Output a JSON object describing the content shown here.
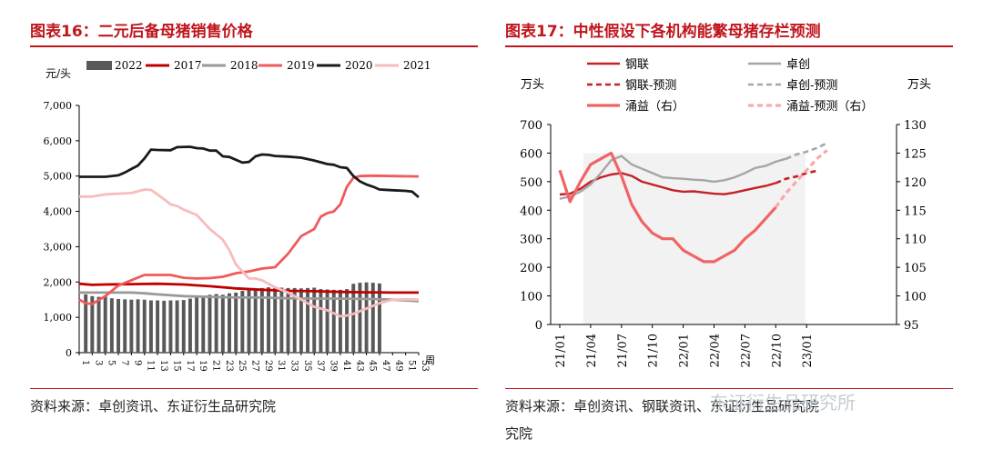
{
  "left": {
    "title": "图表16：二元后备母猪销售价格",
    "source": "资料来源：卓创资讯、东证衍生品研究院"
  },
  "right": {
    "title": "图表17：中性假设下各机构能繁母猪存栏预测",
    "source_line1": "资料来源：卓创资讯、钢联资讯、东证衍生品研究院",
    "source_line2": "究院"
  },
  "watermark": "东证衍生品研究所",
  "colors": {
    "y2022": "#595959",
    "y2017": "#c00000",
    "y2018": "#999999",
    "y2019": "#f05a5a",
    "y2020": "#1a1a1a",
    "y2021": "#f7bcbc",
    "ganglian": "#c42026",
    "zhuochuang": "#a6a6a6",
    "yongyi": "#f06464",
    "yongyi_forecast": "#f7aaaa",
    "shade": "#f2f2f2"
  },
  "chart_data": [
    {
      "type": "bar+line",
      "title": "二元后备母猪销售价格",
      "ylabel": "元/头",
      "xlabel": "周",
      "ylim": [
        0,
        7000
      ],
      "yticks": [
        "0",
        "1,000",
        "2,000",
        "3,000",
        "4,000",
        "5,000",
        "6,000",
        "7,000"
      ],
      "xticks": [
        "1",
        "3",
        "5",
        "7",
        "9",
        "11",
        "13",
        "15",
        "17",
        "19",
        "21",
        "23",
        "25",
        "27",
        "29",
        "31",
        "33",
        "35",
        "37",
        "39",
        "41",
        "43",
        "45",
        "47",
        "49",
        "51",
        "53"
      ],
      "legend": [
        "2022",
        "2017",
        "2018",
        "2019",
        "2020",
        "2021"
      ],
      "bars_2022": {
        "name": "2022",
        "weeks": [
          2,
          3,
          4,
          5,
          6,
          7,
          8,
          9,
          10,
          11,
          12,
          13,
          14,
          15,
          16,
          17,
          18,
          19,
          20,
          21,
          22,
          23,
          24,
          25,
          26,
          27,
          28,
          29,
          30,
          31,
          32,
          33,
          34,
          35,
          36,
          37,
          38,
          39,
          40,
          41,
          42,
          43,
          44,
          45,
          46,
          47
        ],
        "values": [
          1650,
          1600,
          1580,
          1620,
          1540,
          1520,
          1510,
          1500,
          1510,
          1500,
          1480,
          1480,
          1470,
          1480,
          1480,
          1490,
          1530,
          1580,
          1600,
          1640,
          1660,
          1640,
          1680,
          1700,
          1750,
          1780,
          1800,
          1830,
          1850,
          1870,
          1840,
          1830,
          1830,
          1820,
          1830,
          1840,
          1800,
          1790,
          1780,
          1780,
          1800,
          1950,
          1980,
          1990,
          1980,
          1960
        ]
      },
      "series": [
        {
          "name": "2017",
          "weeks": [
            1,
            53
          ],
          "values": [
            1950,
            1700
          ],
          "points": [
            [
              1,
              1950
            ],
            [
              3,
              1920
            ],
            [
              5,
              1930
            ],
            [
              9,
              1940
            ],
            [
              13,
              1950
            ],
            [
              17,
              1930
            ],
            [
              21,
              1880
            ],
            [
              25,
              1820
            ],
            [
              29,
              1780
            ],
            [
              33,
              1750
            ],
            [
              37,
              1740
            ],
            [
              41,
              1720
            ],
            [
              45,
              1710
            ],
            [
              49,
              1700
            ],
            [
              53,
              1700
            ]
          ]
        },
        {
          "name": "2018",
          "points": [
            [
              1,
              1700
            ],
            [
              5,
              1700
            ],
            [
              9,
              1700
            ],
            [
              11,
              1680
            ],
            [
              13,
              1650
            ],
            [
              17,
              1600
            ],
            [
              21,
              1580
            ],
            [
              25,
              1560
            ],
            [
              29,
              1560
            ],
            [
              33,
              1540
            ],
            [
              37,
              1530
            ],
            [
              41,
              1530
            ],
            [
              45,
              1520
            ],
            [
              49,
              1500
            ],
            [
              53,
              1460
            ]
          ]
        },
        {
          "name": "2019",
          "points": [
            [
              1,
              1500
            ],
            [
              2,
              1400
            ],
            [
              3,
              1380
            ],
            [
              5,
              1600
            ],
            [
              7,
              1900
            ],
            [
              9,
              2050
            ],
            [
              11,
              2200
            ],
            [
              15,
              2200
            ],
            [
              17,
              2120
            ],
            [
              19,
              2100
            ],
            [
              21,
              2110
            ],
            [
              23,
              2150
            ],
            [
              25,
              2250
            ],
            [
              27,
              2300
            ],
            [
              29,
              2380
            ],
            [
              31,
              2420
            ],
            [
              33,
              2800
            ],
            [
              35,
              3300
            ],
            [
              37,
              3500
            ],
            [
              38,
              3850
            ],
            [
              39,
              3950
            ],
            [
              40,
              4000
            ],
            [
              41,
              4200
            ],
            [
              42,
              4700
            ],
            [
              43,
              4950
            ],
            [
              44,
              5000
            ],
            [
              46,
              5010
            ],
            [
              49,
              5000
            ],
            [
              53,
              4990
            ]
          ]
        },
        {
          "name": "2020",
          "points": [
            [
              1,
              4980
            ],
            [
              3,
              4980
            ],
            [
              5,
              4980
            ],
            [
              7,
              5020
            ],
            [
              8,
              5100
            ],
            [
              9,
              5200
            ],
            [
              10,
              5300
            ],
            [
              11,
              5500
            ],
            [
              12,
              5750
            ],
            [
              13,
              5740
            ],
            [
              15,
              5730
            ],
            [
              16,
              5820
            ],
            [
              18,
              5830
            ],
            [
              19,
              5790
            ],
            [
              20,
              5780
            ],
            [
              21,
              5720
            ],
            [
              22,
              5720
            ],
            [
              23,
              5560
            ],
            [
              24,
              5540
            ],
            [
              25,
              5460
            ],
            [
              26,
              5380
            ],
            [
              27,
              5400
            ],
            [
              28,
              5560
            ],
            [
              29,
              5610
            ],
            [
              30,
              5600
            ],
            [
              31,
              5570
            ],
            [
              33,
              5550
            ],
            [
              35,
              5520
            ],
            [
              37,
              5440
            ],
            [
              39,
              5340
            ],
            [
              40,
              5320
            ],
            [
              41,
              5250
            ],
            [
              42,
              5230
            ],
            [
              43,
              5000
            ],
            [
              44,
              4850
            ],
            [
              45,
              4760
            ],
            [
              46,
              4700
            ],
            [
              47,
              4620
            ],
            [
              49,
              4600
            ],
            [
              51,
              4580
            ],
            [
              52,
              4560
            ],
            [
              53,
              4400
            ]
          ]
        },
        {
          "name": "2021",
          "points": [
            [
              1,
              4420
            ],
            [
              3,
              4420
            ],
            [
              5,
              4480
            ],
            [
              7,
              4500
            ],
            [
              9,
              4520
            ],
            [
              11,
              4620
            ],
            [
              12,
              4610
            ],
            [
              13,
              4480
            ],
            [
              15,
              4200
            ],
            [
              16,
              4150
            ],
            [
              17,
              4050
            ],
            [
              19,
              3900
            ],
            [
              20,
              3700
            ],
            [
              21,
              3500
            ],
            [
              23,
              3200
            ],
            [
              24,
              2900
            ],
            [
              25,
              2500
            ],
            [
              26,
              2300
            ],
            [
              27,
              2100
            ],
            [
              28,
              2100
            ],
            [
              29,
              2050
            ],
            [
              31,
              1850
            ],
            [
              33,
              1700
            ],
            [
              35,
              1500
            ],
            [
              37,
              1300
            ],
            [
              39,
              1200
            ],
            [
              41,
              1030
            ],
            [
              42,
              1050
            ],
            [
              43,
              1100
            ],
            [
              45,
              1250
            ],
            [
              47,
              1400
            ],
            [
              49,
              1500
            ],
            [
              51,
              1510
            ],
            [
              53,
              1500
            ]
          ]
        }
      ]
    },
    {
      "type": "line",
      "title": "中性假设下各机构能繁母猪存栏预测",
      "ylabel_left": "万头",
      "ylabel_right": "万头",
      "ylim_left": [
        0,
        700
      ],
      "ylim_right": [
        95,
        130
      ],
      "yticks_left": [
        "0",
        "100",
        "200",
        "300",
        "400",
        "500",
        "600",
        "700"
      ],
      "yticks_right": [
        "95",
        "100",
        "105",
        "110",
        "115",
        "120",
        "125",
        "130"
      ],
      "xticks": [
        "21/01",
        "21/04",
        "21/07",
        "21/10",
        "22/01",
        "22/04",
        "22/07",
        "22/10",
        "23/01"
      ],
      "shaded_region": [
        "21/04",
        "22/12"
      ],
      "legend": [
        "钢联",
        "卓创",
        "钢联-预测",
        "卓创-预测",
        "涌益（右）",
        "涌益-预测（右）"
      ],
      "series": [
        {
          "name": "钢联",
          "axis": "left",
          "points": [
            [
              "21/01",
              455
            ],
            [
              "21/02",
              458
            ],
            [
              "21/03",
              475
            ],
            [
              "21/04",
              500
            ],
            [
              "21/05",
              515
            ],
            [
              "21/06",
              525
            ],
            [
              "21/07",
              530
            ],
            [
              "21/08",
              520
            ],
            [
              "21/09",
              500
            ],
            [
              "21/10",
              490
            ],
            [
              "21/11",
              480
            ],
            [
              "21/12",
              470
            ],
            [
              "22/01",
              465
            ],
            [
              "22/02",
              466
            ],
            [
              "22/03",
              462
            ],
            [
              "22/04",
              458
            ],
            [
              "22/05",
              456
            ],
            [
              "22/06",
              462
            ],
            [
              "22/07",
              470
            ],
            [
              "22/08",
              478
            ],
            [
              "22/09",
              485
            ],
            [
              "22/10",
              495
            ]
          ]
        },
        {
          "name": "钢联-预测",
          "axis": "left",
          "points": [
            [
              "22/10",
              495
            ],
            [
              "22/11",
              510
            ],
            [
              "22/12",
              518
            ],
            [
              "23/01",
              530
            ],
            [
              "23/02",
              538
            ]
          ]
        },
        {
          "name": "卓创",
          "axis": "left",
          "points": [
            [
              "21/01",
              440
            ],
            [
              "21/02",
              448
            ],
            [
              "21/03",
              465
            ],
            [
              "21/04",
              490
            ],
            [
              "21/05",
              530
            ],
            [
              "21/06",
              575
            ],
            [
              "21/07",
              590
            ],
            [
              "21/08",
              560
            ],
            [
              "21/09",
              545
            ],
            [
              "21/10",
              530
            ],
            [
              "21/11",
              515
            ],
            [
              "21/12",
              512
            ],
            [
              "22/01",
              510
            ],
            [
              "22/02",
              507
            ],
            [
              "22/03",
              505
            ],
            [
              "22/04",
              500
            ],
            [
              "22/05",
              505
            ],
            [
              "22/06",
              515
            ],
            [
              "22/07",
              530
            ],
            [
              "22/08",
              548
            ],
            [
              "22/09",
              555
            ],
            [
              "22/10",
              570
            ],
            [
              "22/11",
              580
            ]
          ]
        },
        {
          "name": "卓创-预测",
          "axis": "left",
          "points": [
            [
              "22/11",
              580
            ],
            [
              "22/12",
              595
            ],
            [
              "23/01",
              605
            ],
            [
              "23/02",
              618
            ],
            [
              "23/03",
              635
            ]
          ]
        },
        {
          "name": "涌益（右）",
          "axis": "right",
          "points": [
            [
              "21/01",
              122
            ],
            [
              "21/02",
              116.5
            ],
            [
              "21/03",
              120
            ],
            [
              "21/04",
              123
            ],
            [
              "21/05",
              124
            ],
            [
              "21/06",
              125
            ],
            [
              "21/07",
              121
            ],
            [
              "21/08",
              116
            ],
            [
              "21/09",
              113
            ],
            [
              "21/10",
              111
            ],
            [
              "21/11",
              110
            ],
            [
              "21/12",
              110
            ],
            [
              "22/01",
              108
            ],
            [
              "22/02",
              107
            ],
            [
              "22/03",
              106
            ],
            [
              "22/04",
              106
            ],
            [
              "22/05",
              107
            ],
            [
              "22/06",
              108
            ],
            [
              "22/07",
              110
            ],
            [
              "22/08",
              111.5
            ],
            [
              "22/09",
              113.5
            ],
            [
              "22/10",
              115.5
            ]
          ]
        },
        {
          "name": "涌益-预测（右）",
          "axis": "right",
          "points": [
            [
              "22/10",
              115.5
            ],
            [
              "22/11",
              118
            ],
            [
              "22/12",
              120
            ],
            [
              "23/01",
              122
            ],
            [
              "23/02",
              124
            ],
            [
              "23/03",
              125.5
            ]
          ]
        }
      ]
    }
  ]
}
